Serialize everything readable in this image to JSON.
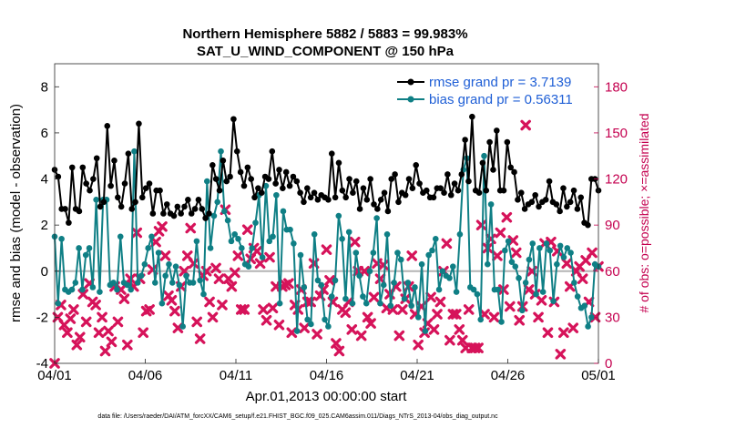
{
  "chart_data": {
    "type": "line",
    "title": "Northern Hemisphere 5882 / 5883 = 99.983%",
    "subtitle": "SAT_U_WIND_COMPONENT @ 150 hPa",
    "xlabel": "Apr.01,2013 00:00:00 start",
    "ylabel": "rmse and bias (model - observation)",
    "y2label": "# of obs: o=possible; ×=assimilated",
    "footer": "data file: /Users/raeder/DAI/ATM_forcXX/CAM6_setup/f.e21.FHIST_BGC.f09_025.CAM6assim.011/Diags_NTrS_2013-04/obs_diag_output.nc",
    "xlim": [
      0,
      30
    ],
    "ylim": [
      -4,
      9
    ],
    "y2lim": [
      0,
      195
    ],
    "x_tick_values": [
      0,
      5,
      10,
      15,
      20,
      25,
      30
    ],
    "x_tick_labels": [
      "04/01",
      "04/06",
      "04/11",
      "04/16",
      "04/21",
      "04/26",
      "05/01"
    ],
    "y_tick_labels": [
      "-4",
      "-2",
      "0",
      "2",
      "4",
      "6",
      "8"
    ],
    "y2_tick_labels": [
      "0",
      "30",
      "60",
      "90",
      "120",
      "150",
      "180"
    ],
    "legend_position": "top-right",
    "colors": {
      "rmse": "#000000",
      "bias": "#0f7f85",
      "obs": "#d6135a",
      "zero": "#b4b4b4",
      "right_axis": "#c4004f"
    },
    "series": [
      {
        "name": "rmse grand pr = 3.7139",
        "values": [
          4.4,
          4.1,
          2.7,
          2.7,
          2.1,
          4.5,
          2.7,
          2.6,
          4.5,
          3.8,
          3.5,
          4.0,
          4.9,
          2.8,
          3.0,
          6.3,
          3.7,
          4.8,
          3.2,
          2.8,
          3.8,
          5.1,
          2.7,
          3.0,
          6.4,
          3.2,
          3.6,
          3.8,
          2.5,
          3.5,
          3.5,
          2.5,
          2.9,
          2.5,
          2.4,
          2.8,
          2.5,
          2.8,
          3.1,
          2.5,
          2.7,
          3.1,
          2.7,
          2.3,
          2.5,
          4.6,
          4.0,
          3.5,
          4.8,
          3.9,
          4.1,
          6.6,
          5.2,
          4.3,
          3.7,
          4.5,
          4.0,
          3.2,
          3.6,
          3.4,
          4.1,
          4.0,
          5.2,
          3.8,
          4.4,
          3.6,
          4.3,
          3.7,
          4.1,
          3.9,
          3.4,
          3.0,
          3.6,
          3.2,
          3.4,
          3.1,
          3.3,
          3.2,
          3.1,
          5.1,
          3.2,
          4.7,
          3.5,
          3.2,
          4.0,
          3.4,
          3.9,
          2.7,
          3.6,
          3.1,
          4.0,
          2.9,
          2.7,
          3.1,
          3.4,
          2.6,
          4.0,
          4.2,
          3.0,
          3.4,
          3.3,
          4.0,
          3.6,
          4.6,
          3.8,
          3.4,
          3.5,
          3.2,
          3.2,
          3.6,
          3.6,
          3.4,
          4.2,
          3.3,
          3.8,
          3.5,
          4.2,
          5.7,
          3.9,
          6.7,
          3.5,
          3.4,
          4.7,
          3.5,
          5.6,
          4.4,
          6.1,
          3.5,
          3.5,
          5.6,
          4.5,
          4.3,
          3.1,
          3.4,
          2.7,
          2.9,
          3.0,
          3.3,
          2.8,
          3.0,
          3.1,
          3.9,
          3.0,
          2.9,
          2.6,
          3.6,
          2.8,
          3.0,
          3.5,
          2.7,
          3.2,
          2.1,
          2.0,
          4.0,
          4.0,
          3.5
        ]
      },
      {
        "name": "bias grand pr = 0.56311",
        "values": [
          1.5,
          -1.4,
          1.4,
          -0.8,
          -0.9,
          -0.8,
          -0.5,
          1.0,
          -0.8,
          0.7,
          1.0,
          -0.7,
          3.1,
          -0.9,
          3.1,
          3.1,
          -0.6,
          -0.5,
          -0.8,
          1.5,
          -0.5,
          -0.6,
          -0.8,
          5.2,
          -0.5,
          -0.2,
          0.3,
          1.0,
          1.5,
          -0.5,
          0.8,
          -1.4,
          -0.2,
          0.3,
          -0.5,
          0.2,
          -0.6,
          -2.4,
          -0.2,
          -0.5,
          -0.5,
          1.3,
          -0.4,
          -1.0,
          3.9,
          1.0,
          2.4,
          3.0,
          5.2,
          2.6,
          2.2,
          1.3,
          1.6,
          1.4,
          1.0,
          0.3,
          0.2,
          1.0,
          2.1,
          3.3,
          0.6,
          3.7,
          1.3,
          1.5,
          3.3,
          -1.4,
          2.6,
          1.8,
          1.8,
          1.2,
          -2.6,
          0.7,
          -0.7,
          -2.1,
          -2.3,
          1.6,
          -0.4,
          -0.6,
          -2.1,
          -2.4,
          -1.1,
          -0.4,
          2.4,
          1.4,
          -1.2,
          1.7,
          -1.4,
          0.8,
          -0.2,
          -1.1,
          -1.4,
          0.0,
          0.8,
          2.3,
          -1.4,
          -0.6,
          1.6,
          -1.5,
          -0.5,
          0.8,
          0.5,
          -1.2,
          -0.5,
          -1.5,
          -0.7,
          -2.0,
          0.3,
          -2.6,
          0.7,
          0.9,
          1.4,
          -0.8,
          0.0,
          -0.2,
          -0.3,
          0.2,
          -0.9,
          1.6,
          4.4,
          4.9,
          -0.7,
          -0.8,
          -1.0,
          -2.1,
          5.0,
          0.3,
          2.9,
          -0.8,
          -0.8,
          -2.2,
          0.9,
          1.3,
          0.4,
          0.2,
          -0.3,
          -1.7,
          -0.5,
          0.5,
          1.2,
          -1.0,
          1.0,
          -0.9,
          1.2,
          0.9,
          -1.3,
          0.3,
          1.1,
          0.6,
          1.0,
          0.8,
          -0.5,
          -1.1,
          -1.6,
          -1.5,
          -2.4,
          -2.0,
          0.3,
          0.2
        ]
      },
      {
        "name": "# of obs assimilated",
        "values": [
          0,
          30,
          38,
          25,
          20,
          29,
          35,
          12,
          17,
          45,
          27,
          52,
          40,
          38,
          20,
          30,
          8,
          21,
          14,
          50,
          27,
          48,
          42,
          12,
          55,
          50,
          85,
          55,
          20,
          34,
          35,
          61,
          79,
          86,
          89,
          70,
          44,
          41,
          34,
          23,
          50,
          60,
          70,
          88,
          65,
          27,
          16,
          57,
          60,
          40,
          30,
          62,
          55,
          38,
          100,
          55,
          50,
          59,
          70,
          35,
          35,
          87,
          68,
          75,
          73,
          65,
          35,
          28,
          69,
          36,
          50,
          25,
          50,
          51,
          52,
          20,
          38,
          35,
          48,
          23,
          40,
          40,
          65,
          19,
          44,
          48,
          74,
          54,
          40,
          13,
          8,
          35,
          33,
          40,
          22,
          79,
          60,
          18,
          60,
          30,
          26,
          43,
          65,
          55,
          64,
          36,
          45,
          35,
          50,
          18,
          35,
          42,
          50,
          70,
          32,
          12,
          37,
          20,
          26,
          43,
          22,
          32,
          40,
          60,
          78,
          15,
          32,
          32,
          22,
          15,
          10,
          35,
          10,
          10,
          10,
          90,
          32,
          75,
          81,
          30,
          70,
          85,
          48,
          95,
          37,
          80,
          72,
          28,
          37,
          155,
          48,
          60,
          45,
          30,
          41,
          78,
          20,
          79,
          40,
          73,
          6,
          20,
          65,
          50,
          23,
          60,
          63,
          55,
          67,
          40,
          72,
          30,
          63
        ]
      }
    ]
  }
}
